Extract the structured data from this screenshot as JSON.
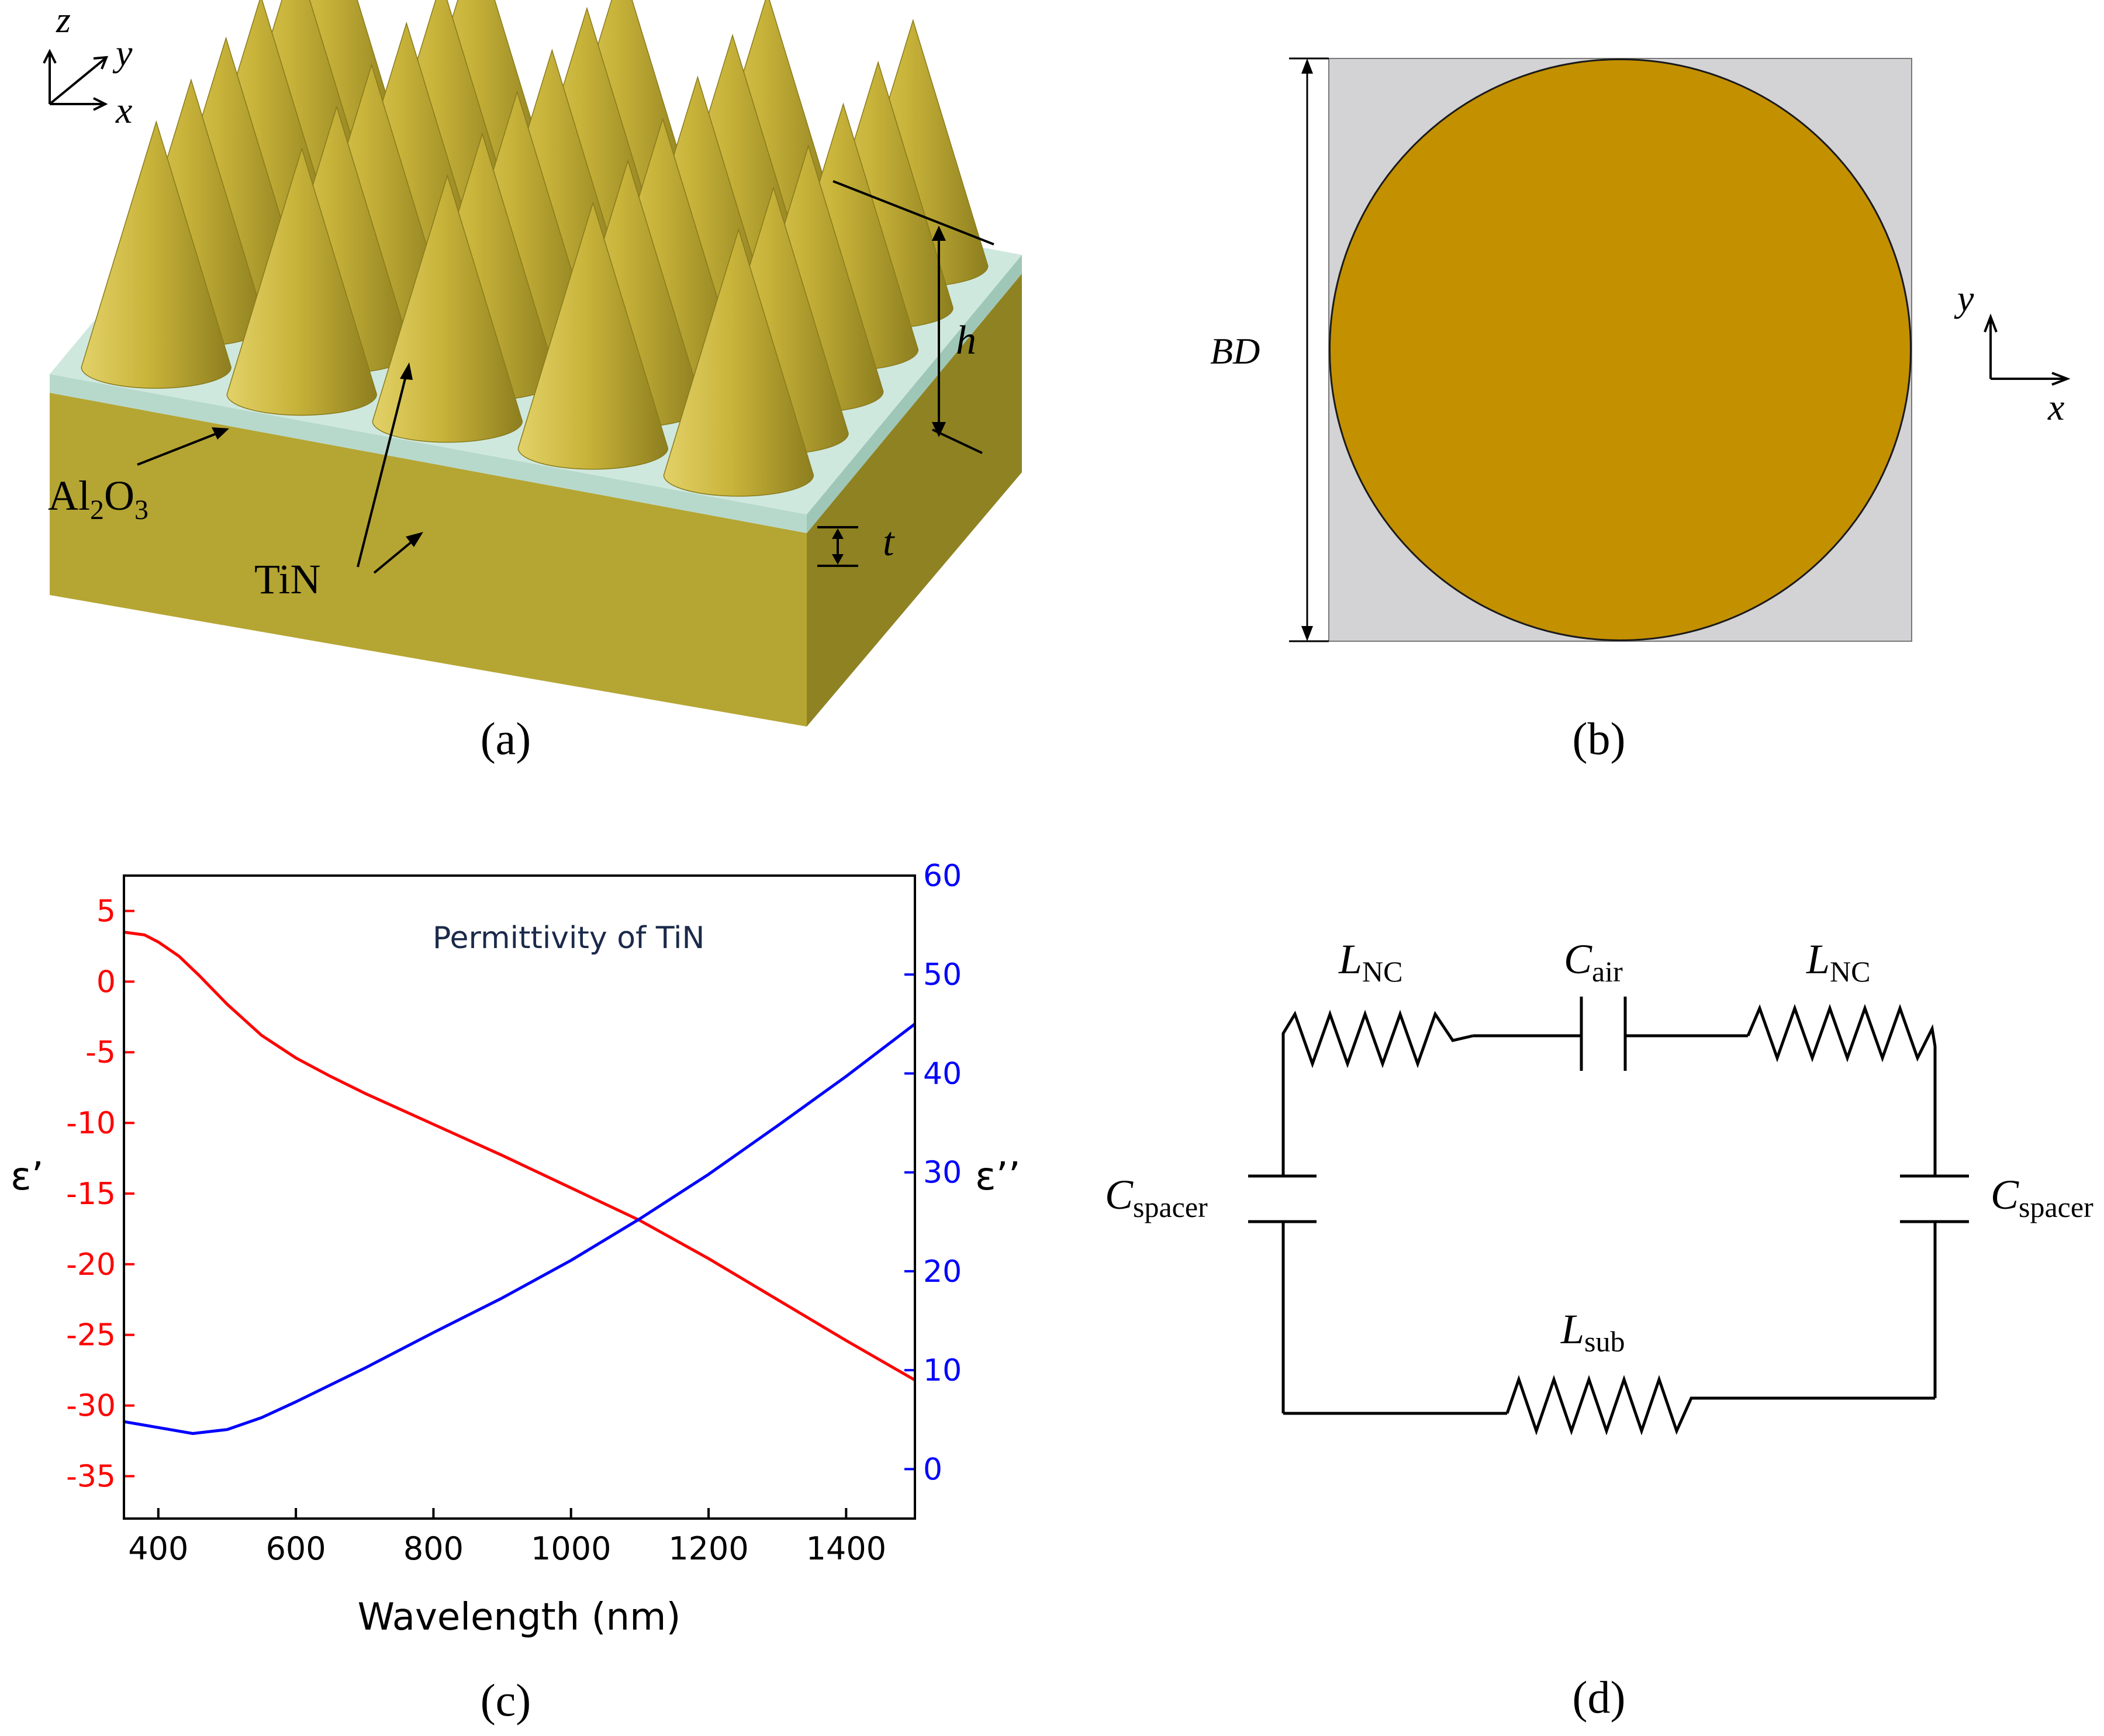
{
  "panel_a": {
    "caption": "(a)",
    "axis_z": "z",
    "axis_y": "y",
    "axis_x": "x",
    "label_h": "h",
    "label_t": "t",
    "label_al2o3": {
      "base": "Al",
      "sub1": "2",
      "mid": "O",
      "sub2": "3"
    },
    "label_tin": "TiN",
    "colors": {
      "cone": "#c9b43a",
      "substrate": "#b5a533",
      "spacer": "#cfe8de"
    }
  },
  "panel_b": {
    "caption": "(b)",
    "label_bd": "BD",
    "axis_y": "y",
    "axis_x": "x",
    "colors": {
      "cell": "#d3d3d6",
      "disk": "#c39000"
    }
  },
  "panel_c": {
    "caption": "(c)"
  },
  "panel_d": {
    "caption": "(d)",
    "l_nc_left": {
      "base": "L",
      "sub": "NC"
    },
    "c_air": {
      "base": "C",
      "sub": "air"
    },
    "l_nc_right": {
      "base": "L",
      "sub": "NC"
    },
    "c_spacer_left": {
      "base": "C",
      "sub": "spacer"
    },
    "c_spacer_right": {
      "base": "C",
      "sub": "spacer"
    },
    "l_sub": {
      "base": "L",
      "sub": "sub"
    }
  },
  "chart_data": {
    "type": "line",
    "title": "Permittivity of TiN",
    "xlabel": "Wavelength (nm)",
    "ylabel_left": "ε’",
    "ylabel_right": "ε’’",
    "xlim": [
      350,
      1500
    ],
    "ylim_left": [
      -38,
      7.5
    ],
    "ylim_right": [
      -5,
      60
    ],
    "xticks": [
      400,
      600,
      800,
      1000,
      1200,
      1400
    ],
    "yticks_left": [
      5,
      0,
      -5,
      -10,
      -15,
      -20,
      -25,
      -30,
      -35
    ],
    "yticks_right": [
      60,
      50,
      40,
      30,
      20,
      10,
      0
    ],
    "grid": false,
    "series": [
      {
        "name": "ε’",
        "axis": "left",
        "color": "#ff0000",
        "x": [
          350,
          380,
          400,
          430,
          460,
          500,
          550,
          600,
          650,
          700,
          800,
          900,
          1000,
          1100,
          1200,
          1300,
          1400,
          1500
        ],
        "y": [
          3.5,
          3.3,
          2.8,
          1.8,
          0.4,
          -1.6,
          -3.8,
          -5.4,
          -6.7,
          -7.9,
          -10.1,
          -12.3,
          -14.6,
          -16.9,
          -19.6,
          -22.5,
          -25.4,
          -28.2
        ]
      },
      {
        "name": "ε’’",
        "axis": "right",
        "color": "#0000ff",
        "x": [
          350,
          400,
          450,
          500,
          550,
          600,
          700,
          800,
          900,
          1000,
          1100,
          1200,
          1300,
          1400,
          1500
        ],
        "y": [
          4.8,
          4.2,
          3.6,
          4.0,
          5.2,
          6.8,
          10.2,
          13.8,
          17.3,
          21.1,
          25.3,
          29.8,
          34.7,
          39.7,
          45.0
        ]
      }
    ]
  }
}
